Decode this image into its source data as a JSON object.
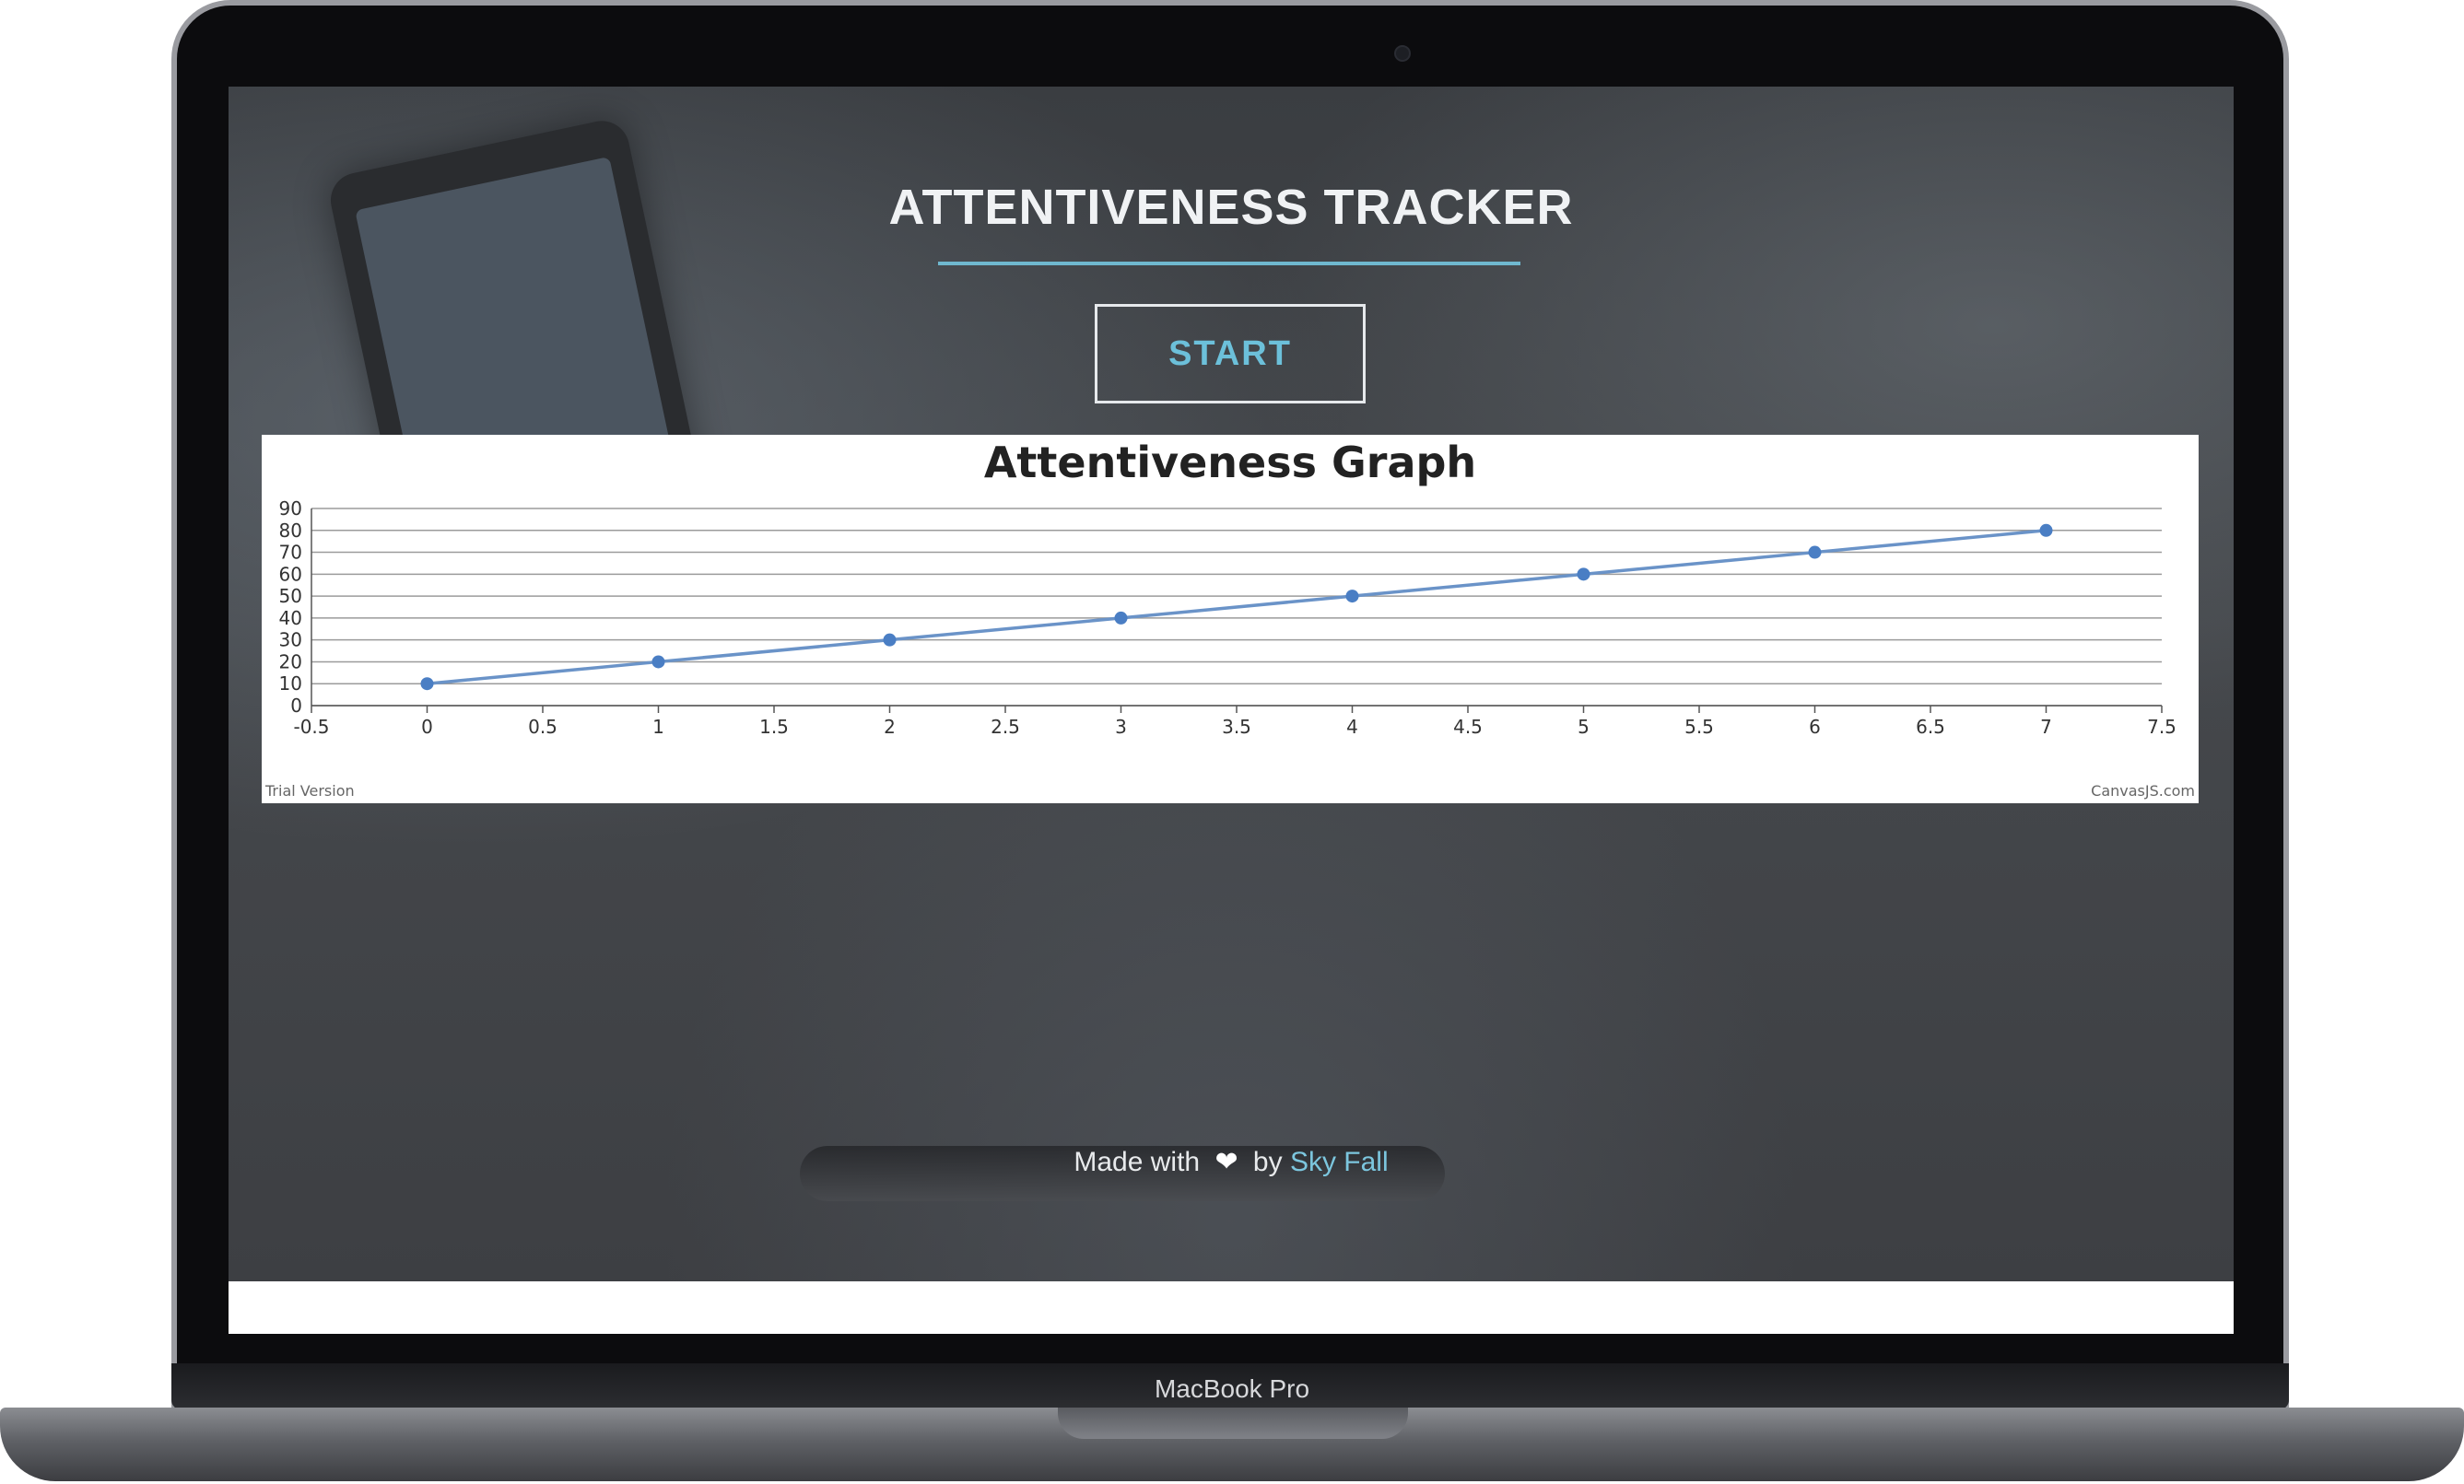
{
  "app": {
    "title": "ATTENTIVENESS TRACKER",
    "start_label": "START"
  },
  "footer": {
    "made_with": "Made with",
    "heart_icon": "heart-icon",
    "by": "by",
    "author": "Sky Fall"
  },
  "device": {
    "model": "MacBook Pro"
  },
  "colors": {
    "accent": "#6cc0da",
    "line": "#6a93c8",
    "point": "#4a7ec4"
  },
  "chart_data": {
    "type": "line",
    "title": "Attentiveness Graph",
    "x": [
      0,
      1,
      2,
      3,
      4,
      5,
      6,
      7
    ],
    "y": [
      10,
      20,
      30,
      40,
      50,
      60,
      70,
      80
    ],
    "xlim": [
      -0.5,
      7.5
    ],
    "ylim": [
      0,
      90
    ],
    "x_ticks": [
      "-0.5",
      "0",
      "0.5",
      "1",
      "1.5",
      "2",
      "2.5",
      "3",
      "3.5",
      "4",
      "4.5",
      "5",
      "5.5",
      "6",
      "6.5",
      "7",
      "7.5"
    ],
    "y_ticks": [
      "0",
      "10",
      "20",
      "30",
      "40",
      "50",
      "60",
      "70",
      "80",
      "90"
    ],
    "grid": true,
    "watermark_left": "Trial Version",
    "watermark_right": "CanvasJS.com"
  }
}
